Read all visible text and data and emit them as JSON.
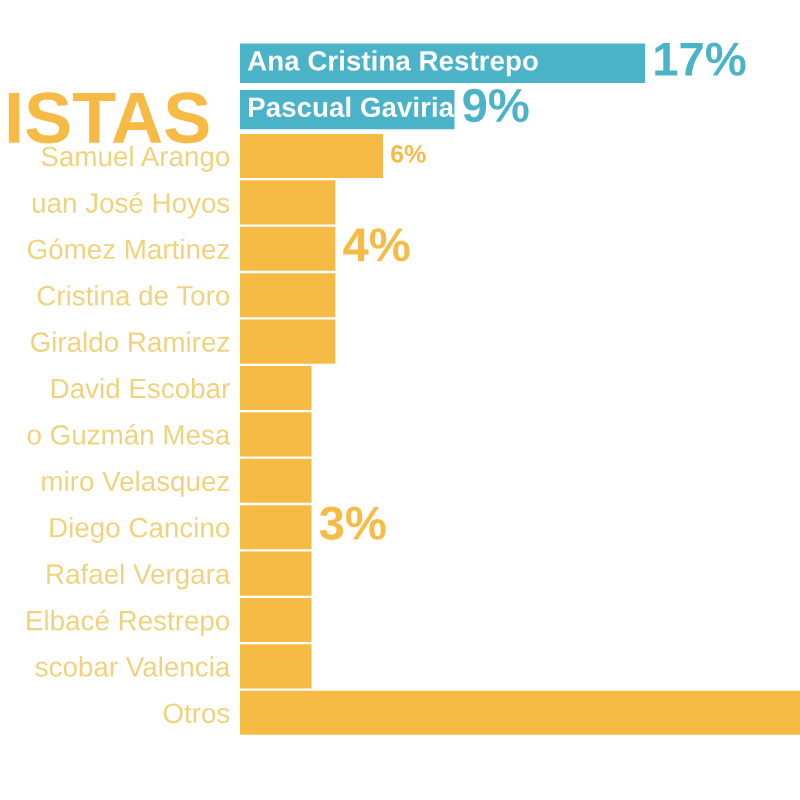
{
  "chart_data": {
    "type": "bar",
    "orientation": "horizontal",
    "title": "ISTAS",
    "categories": [
      "Ana Cristina Restrepo",
      "Pascual Gaviria",
      "Samuel Arango",
      "uan José Hoyos",
      "Gómez Martinez",
      "Cristina de Toro",
      "Giraldo Ramirez",
      "David Escobar",
      "o Guzmán Mesa",
      "miro Velasquez",
      "Diego Cancino",
      "Rafael Vergara",
      "Elbacé Restrepo",
      "scobar Valencia",
      "Otros"
    ],
    "values": [
      17,
      9,
      6,
      4,
      4,
      4,
      4,
      3,
      3,
      3,
      3,
      3,
      3,
      3,
      23.5
    ],
    "value_labels": [
      "17%",
      "9%",
      "6%",
      null,
      "4%",
      null,
      null,
      null,
      null,
      null,
      "3%",
      null,
      null,
      null,
      null
    ],
    "colors": [
      "#4bb3c8",
      "#4bb3c8",
      "#f6bb45",
      "#f6bb45",
      "#f6bb45",
      "#f6bb45",
      "#f6bb45",
      "#f6bb45",
      "#f6bb45",
      "#f6bb45",
      "#f6bb45",
      "#f6bb45",
      "#f6bb45",
      "#f6bb45",
      "#f6bb45"
    ],
    "grid": false,
    "legend": false
  }
}
